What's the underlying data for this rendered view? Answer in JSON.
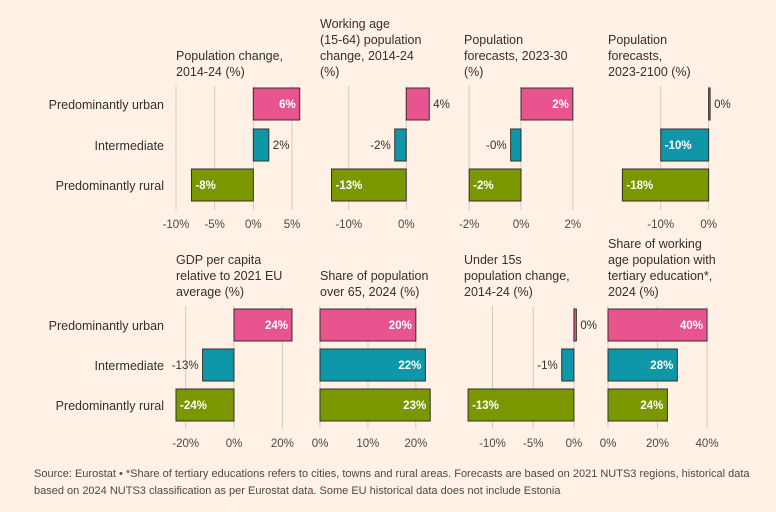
{
  "row_labels": [
    "Predominantly urban",
    "Intermediate",
    "Predominantly rural"
  ],
  "colors": {
    "urban": "#e8558e",
    "intermediate": "#0f97a9",
    "rural": "#7a9700"
  },
  "chart_data": [
    {
      "type": "bar",
      "title_lines": [
        "Population change,",
        "2014-24 (%)"
      ],
      "categories": [
        "Predominantly urban",
        "Intermediate",
        "Predominantly rural"
      ],
      "values": [
        6,
        2,
        -8
      ],
      "value_labels": [
        "6%",
        "2%",
        "-8%"
      ],
      "xlim": [
        -10,
        5
      ],
      "ticks": [
        -10,
        -5,
        0,
        5
      ],
      "tick_labels": [
        "-10%",
        "-5%",
        "0%",
        "5%"
      ]
    },
    {
      "type": "bar",
      "title_lines": [
        "Working age",
        "(15-64) population",
        "change, 2014-24",
        "(%)"
      ],
      "categories": [
        "Predominantly urban",
        "Intermediate",
        "Predominantly rural"
      ],
      "values": [
        4,
        -2,
        -13
      ],
      "value_labels": [
        "4%",
        "-2%",
        "-13%"
      ],
      "xlim": [
        -15,
        5
      ],
      "ticks": [
        -10,
        0
      ],
      "tick_labels": [
        "-10%",
        "0%"
      ]
    },
    {
      "type": "bar",
      "title_lines": [
        "Population",
        "forecasts, 2023-30",
        "(%)"
      ],
      "categories": [
        "Predominantly urban",
        "Intermediate",
        "Predominantly rural"
      ],
      "values": [
        2,
        -0.4,
        -2
      ],
      "value_labels": [
        "2%",
        "-0%",
        "-2%"
      ],
      "xlim": [
        -2.2,
        2.2
      ],
      "ticks": [
        -2,
        0,
        2
      ],
      "tick_labels": [
        "-2%",
        "0%",
        "2%"
      ]
    },
    {
      "type": "bar",
      "title_lines": [
        "Population",
        "forecasts,",
        "2023-2100 (%)"
      ],
      "categories": [
        "Predominantly urban",
        "Intermediate",
        "Predominantly rural"
      ],
      "values": [
        0.3,
        -10,
        -18
      ],
      "value_labels": [
        "0%",
        "-10%",
        "-18%"
      ],
      "xlim": [
        -21,
        0.7
      ],
      "ticks": [
        -10,
        0
      ],
      "tick_labels": [
        "-10%",
        "0%"
      ]
    },
    {
      "type": "bar",
      "title_lines": [
        "GDP per capita",
        "relative to 2021 EU",
        "average (%)"
      ],
      "categories": [
        "Predominantly urban",
        "Intermediate",
        "Predominantly rural"
      ],
      "values": [
        24,
        -13,
        -24
      ],
      "value_labels": [
        "24%",
        "-13%",
        "-24%"
      ],
      "xlim": [
        -24,
        24
      ],
      "ticks": [
        -20,
        0,
        20
      ],
      "tick_labels": [
        "-20%",
        "0%",
        "20%"
      ]
    },
    {
      "type": "bar",
      "title_lines": [
        "Share of population",
        "over 65, 2024 (%)"
      ],
      "categories": [
        "Predominantly urban",
        "Intermediate",
        "Predominantly rural"
      ],
      "values": [
        20,
        22,
        23
      ],
      "value_labels": [
        "20%",
        "22%",
        "23%"
      ],
      "xlim": [
        0,
        24
      ],
      "ticks": [
        0,
        10,
        20
      ],
      "tick_labels": [
        "0%",
        "10%",
        "20%"
      ]
    },
    {
      "type": "bar",
      "title_lines": [
        "Under 15s",
        "population change,",
        "2014-24 (%)"
      ],
      "categories": [
        "Predominantly urban",
        "Intermediate",
        "Predominantly rural"
      ],
      "values": [
        0.3,
        -1.5,
        -13
      ],
      "value_labels": [
        "0%",
        "-1%",
        "-13%"
      ],
      "xlim": [
        -13.5,
        0.5
      ],
      "ticks": [
        -10,
        -5,
        0
      ],
      "tick_labels": [
        "-10%",
        "-5%",
        "0%"
      ]
    },
    {
      "type": "bar",
      "title_lines": [
        "Share of working",
        "age population with",
        "tertiary education*,",
        "2024 (%)"
      ],
      "categories": [
        "Predominantly urban",
        "Intermediate",
        "Predominantly rural"
      ],
      "values": [
        40,
        28,
        24
      ],
      "value_labels": [
        "40%",
        "28%",
        "24%"
      ],
      "xlim": [
        0,
        42
      ],
      "ticks": [
        0,
        20,
        40
      ],
      "tick_labels": [
        "0%",
        "20%",
        "40%"
      ]
    }
  ],
  "source": "Source: Eurostat • *Share of tertiary educations refers to cities, towns and rural areas. Forecasts are based on 2021 NUTS3 regions, historical data based on 2024 NUTS3 classification as per Eurostat data. Some EU historical data does not include Estonia"
}
